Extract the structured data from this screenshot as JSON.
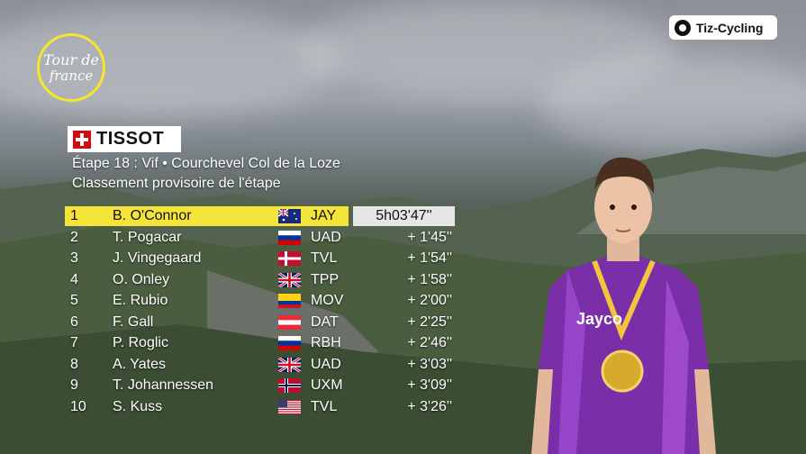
{
  "broadcast": {
    "race_logo_line1": "Tour de",
    "race_logo_line2": "france",
    "channel_badge": "Tiz-Cycling",
    "sponsor": "TISSOT"
  },
  "stage": {
    "title": "Étape 18 : Vif • Courchevel Col de la Loze",
    "subtitle": "Classement provisoire de l'étape"
  },
  "classification": [
    {
      "pos": "1",
      "rider": "B. O'Connor",
      "flag": "AUS",
      "team": "JAY",
      "time": "5h03'47''"
    },
    {
      "pos": "2",
      "rider": "T. Pogacar",
      "flag": "SVN",
      "team": "UAD",
      "time": "+ 1'45''"
    },
    {
      "pos": "3",
      "rider": "J. Vingegaard",
      "flag": "DEN",
      "team": "TVL",
      "time": "+ 1'54''"
    },
    {
      "pos": "4",
      "rider": "O. Onley",
      "flag": "GBR",
      "team": "TPP",
      "time": "+ 1'58''"
    },
    {
      "pos": "5",
      "rider": "E. Rubio",
      "flag": "COL",
      "team": "MOV",
      "time": "+ 2'00''"
    },
    {
      "pos": "6",
      "rider": "F. Gall",
      "flag": "AUT",
      "team": "DAT",
      "time": "+ 2'25''"
    },
    {
      "pos": "7",
      "rider": "P. Roglic",
      "flag": "SVN",
      "team": "RBH",
      "time": "+ 2'46''"
    },
    {
      "pos": "8",
      "rider": "A. Yates",
      "flag": "GBR",
      "team": "UAD",
      "time": "+ 3'03''"
    },
    {
      "pos": "9",
      "rider": "T. Johannessen",
      "flag": "NOR",
      "team": "UXM",
      "time": "+ 3'09''"
    },
    {
      "pos": "10",
      "rider": "S. Kuss",
      "flag": "USA",
      "team": "TVL",
      "time": "+ 3'26''"
    }
  ],
  "colors": {
    "leader_highlight": "#f5e43a",
    "logo_ring": "#f6e52a",
    "jersey": "#7a2fa8"
  }
}
